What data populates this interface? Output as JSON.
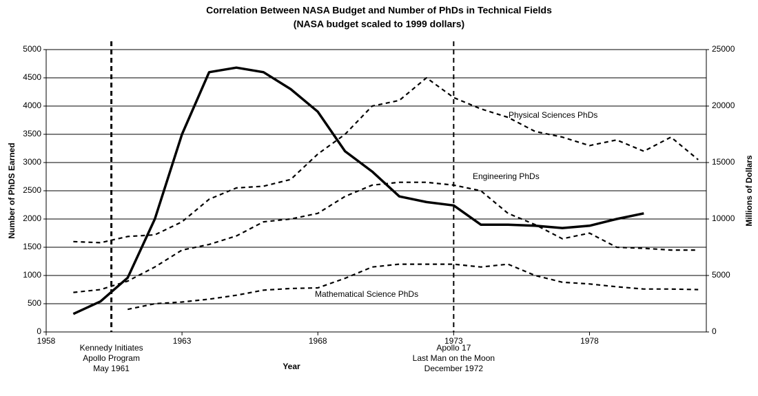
{
  "chart_data": {
    "type": "line",
    "title": "Correlation Between NASA Budget and Number of PhDs in Technical Fields",
    "subtitle": "(NASA budget scaled to 1999 dollars)",
    "x_label": "Year",
    "y_label": "Number of PhDS Earned",
    "y2_label": "Millions of Dollars",
    "x": [
      1959,
      1960,
      1961,
      1962,
      1963,
      1964,
      1965,
      1966,
      1967,
      1968,
      1969,
      1970,
      1971,
      1972,
      1973,
      1974,
      1975,
      1976,
      1977,
      1978,
      1979,
      1980,
      1981,
      1982
    ],
    "xlim": [
      1958,
      1982.3
    ],
    "xticks": [
      1958,
      1963,
      1968,
      1973,
      1978
    ],
    "ylim": [
      0,
      5000
    ],
    "yticks": [
      0,
      500,
      1000,
      1500,
      2000,
      2500,
      3000,
      3500,
      4000,
      4500,
      5000
    ],
    "y2lim": [
      0,
      25000
    ],
    "y2ticks": [
      0,
      5000,
      10000,
      15000,
      20000,
      25000
    ],
    "grid": true,
    "series": [
      {
        "name": "Physical Sciences PhDs",
        "color": "#000000",
        "style": "dashed",
        "values": [
          1600,
          1580,
          1690,
          1720,
          1950,
          2350,
          2550,
          2580,
          2700,
          3150,
          3500,
          4000,
          4100,
          4500,
          4150,
          3950,
          3800,
          3550,
          3450,
          3300,
          3400,
          3200,
          3450,
          3050
        ]
      },
      {
        "name": "Engineering PhDs",
        "color": "#000000",
        "style": "dashed",
        "values": [
          700,
          750,
          900,
          1150,
          1450,
          1550,
          1700,
          1950,
          2000,
          2100,
          2400,
          2600,
          2650,
          2650,
          2600,
          2500,
          2100,
          1900,
          1650,
          1750,
          1500,
          1480,
          1450,
          1450
        ]
      },
      {
        "name": "Mathematical Science PhDs",
        "color": "#000000",
        "style": "dashed",
        "values": [
          null,
          null,
          400,
          500,
          530,
          580,
          650,
          740,
          770,
          780,
          950,
          1150,
          1200,
          1200,
          1200,
          1150,
          1200,
          1000,
          880,
          850,
          800,
          760,
          760,
          750
        ]
      },
      {
        "color": "#000000",
        "style": "solid",
        "axis": "y2",
        "values": [
          1600,
          2700,
          4800,
          10000,
          17500,
          23000,
          23400,
          23000,
          21500,
          19500,
          16000,
          14200,
          12000,
          11500,
          11200,
          9500,
          9500,
          9400,
          9200,
          9400,
          10000,
          10500,
          null,
          null
        ]
      }
    ],
    "events": [
      {
        "x": 1960.4,
        "label": [
          "Kennedy Initiates",
          "Apollo Program",
          "May 1961"
        ]
      },
      {
        "x": 1973,
        "label": [
          "Apollo 17",
          "Last Man on the Moon",
          "December 1972"
        ]
      }
    ]
  }
}
